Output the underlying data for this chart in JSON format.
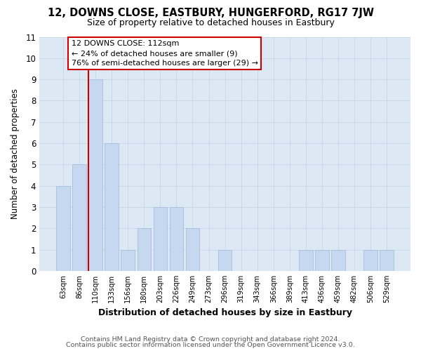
{
  "title": "12, DOWNS CLOSE, EASTBURY, HUNGERFORD, RG17 7JW",
  "subtitle": "Size of property relative to detached houses in Eastbury",
  "xlabel": "Distribution of detached houses by size in Eastbury",
  "ylabel": "Number of detached properties",
  "bar_labels": [
    "63sqm",
    "86sqm",
    "110sqm",
    "133sqm",
    "156sqm",
    "180sqm",
    "203sqm",
    "226sqm",
    "249sqm",
    "273sqm",
    "296sqm",
    "319sqm",
    "343sqm",
    "366sqm",
    "389sqm",
    "413sqm",
    "436sqm",
    "459sqm",
    "482sqm",
    "506sqm",
    "529sqm"
  ],
  "bar_values": [
    4,
    5,
    9,
    6,
    1,
    2,
    3,
    3,
    2,
    0,
    1,
    0,
    0,
    0,
    0,
    1,
    1,
    1,
    0,
    1,
    1
  ],
  "bar_color": "#c5d8f0",
  "bar_edge_color": "#a0b8d8",
  "highlight_index": 2,
  "highlight_line_color": "#cc0000",
  "ylim": [
    0,
    11
  ],
  "yticks": [
    0,
    1,
    2,
    3,
    4,
    5,
    6,
    7,
    8,
    9,
    10,
    11
  ],
  "annotation_title": "12 DOWNS CLOSE: 112sqm",
  "annotation_line1": "← 24% of detached houses are smaller (9)",
  "annotation_line2": "76% of semi-detached houses are larger (29) →",
  "annotation_box_color": "#ffffff",
  "annotation_box_edge": "#cc0000",
  "footer1": "Contains HM Land Registry data © Crown copyright and database right 2024.",
  "footer2": "Contains public sector information licensed under the Open Government Licence v3.0.",
  "grid_color": "#c8d8e8",
  "plot_bg_color": "#dce8f4",
  "fig_bg_color": "#ffffff"
}
